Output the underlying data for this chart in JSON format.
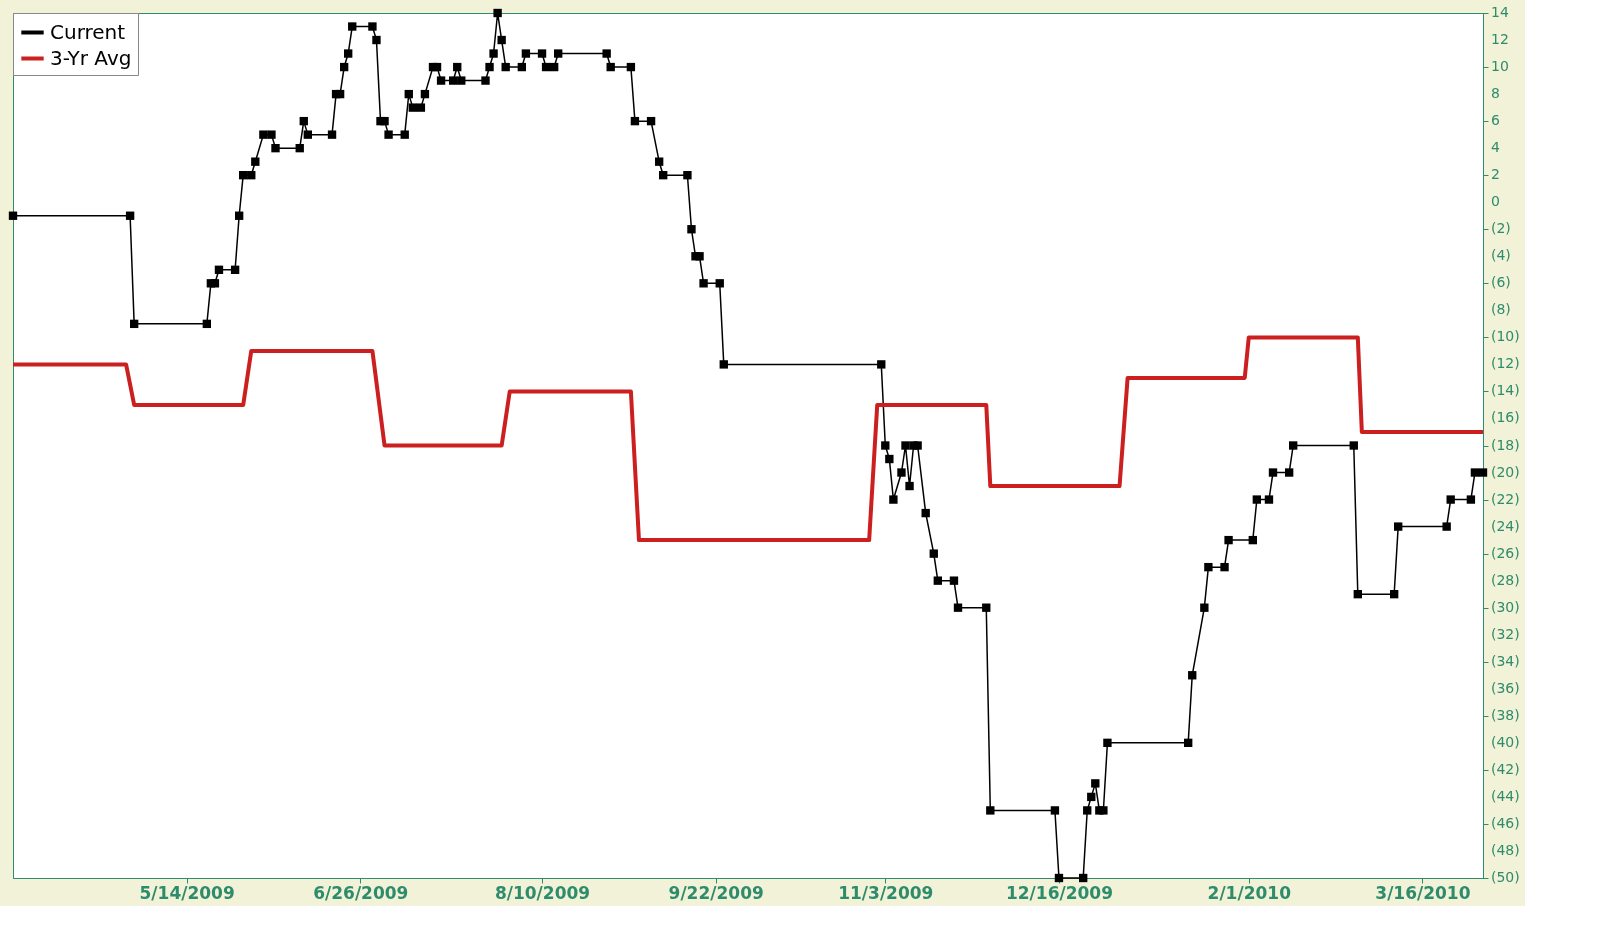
{
  "chart_data": {
    "type": "line",
    "xlim": [
      "2009-04-01",
      "2010-03-31"
    ],
    "xticks": [
      {
        "value": "2009-05-14",
        "label": "5/14/2009"
      },
      {
        "value": "2009-06-26",
        "label": "6/26/2009"
      },
      {
        "value": "2009-08-10",
        "label": "8/10/2009"
      },
      {
        "value": "2009-09-22",
        "label": "9/22/2009"
      },
      {
        "value": "2009-11-03",
        "label": "11/3/2009"
      },
      {
        "value": "2009-12-16",
        "label": "12/16/2009"
      },
      {
        "value": "2010-02-01",
        "label": "2/1/2010"
      },
      {
        "value": "2010-03-16",
        "label": "3/16/2010"
      }
    ],
    "ylim": [
      -50,
      14
    ],
    "yticks": [
      {
        "value": -50,
        "label": "(50)"
      },
      {
        "value": -48,
        "label": "(48)"
      },
      {
        "value": -46,
        "label": "(46)"
      },
      {
        "value": -44,
        "label": "(44)"
      },
      {
        "value": -42,
        "label": "(42)"
      },
      {
        "value": -40,
        "label": "(40)"
      },
      {
        "value": -38,
        "label": "(38)"
      },
      {
        "value": -36,
        "label": "(36)"
      },
      {
        "value": -34,
        "label": "(34)"
      },
      {
        "value": -32,
        "label": "(32)"
      },
      {
        "value": -30,
        "label": "(30)"
      },
      {
        "value": -28,
        "label": "(28)"
      },
      {
        "value": -26,
        "label": "(26)"
      },
      {
        "value": -24,
        "label": "(24)"
      },
      {
        "value": -22,
        "label": "(22)"
      },
      {
        "value": -20,
        "label": "(20)"
      },
      {
        "value": -18,
        "label": "(18)"
      },
      {
        "value": -16,
        "label": "(16)"
      },
      {
        "value": -14,
        "label": "(14)"
      },
      {
        "value": -12,
        "label": "(12)"
      },
      {
        "value": -10,
        "label": "(10)"
      },
      {
        "value": -8,
        "label": "(8)"
      },
      {
        "value": -6,
        "label": "(6)"
      },
      {
        "value": -4,
        "label": "(4)"
      },
      {
        "value": -2,
        "label": "(2)"
      },
      0,
      2,
      4,
      6,
      8,
      10,
      12,
      14
    ],
    "grid": false,
    "legend": "top left",
    "series": [
      {
        "name": "Current",
        "color": "#000000",
        "type": "line",
        "marker": "square",
        "x": [
          "2009-04-01",
          "2009-04-30",
          "2009-05-01",
          "2009-05-19",
          "2009-05-20",
          "2009-05-21",
          "2009-05-22",
          "2009-05-26",
          "2009-05-27",
          "2009-05-28",
          "2009-05-30",
          "2009-05-31",
          "2009-06-02",
          "2009-06-04",
          "2009-06-05",
          "2009-06-11",
          "2009-06-12",
          "2009-06-13",
          "2009-06-19",
          "2009-06-20",
          "2009-06-21",
          "2009-06-22",
          "2009-06-23",
          "2009-06-24",
          "2009-06-29",
          "2009-06-30",
          "2009-07-01",
          "2009-07-02",
          "2009-07-03",
          "2009-07-07",
          "2009-07-08",
          "2009-07-09",
          "2009-07-11",
          "2009-07-12",
          "2009-07-14",
          "2009-07-15",
          "2009-07-16",
          "2009-07-19",
          "2009-07-20",
          "2009-07-21",
          "2009-07-27",
          "2009-07-28",
          "2009-07-29",
          "2009-07-30",
          "2009-07-31",
          "2009-08-01",
          "2009-08-05",
          "2009-08-06",
          "2009-08-10",
          "2009-08-11",
          "2009-08-13",
          "2009-08-14",
          "2009-08-26",
          "2009-08-27",
          "2009-09-01",
          "2009-09-02",
          "2009-09-06",
          "2009-09-08",
          "2009-09-09",
          "2009-09-15",
          "2009-09-16",
          "2009-09-17",
          "2009-09-18",
          "2009-09-19",
          "2009-09-23",
          "2009-09-24",
          "2009-11-02",
          "2009-11-03",
          "2009-11-04",
          "2009-11-05",
          "2009-11-07",
          "2009-11-08",
          "2009-11-09",
          "2009-11-10",
          "2009-11-11",
          "2009-11-13",
          "2009-11-15",
          "2009-11-16",
          "2009-11-20",
          "2009-11-21",
          "2009-11-28",
          "2009-11-29",
          "2009-12-15",
          "2009-12-16",
          "2009-12-22",
          "2009-12-23",
          "2009-12-24",
          "2009-12-25",
          "2009-12-26",
          "2009-12-27",
          "2009-12-28",
          "2010-01-17",
          "2010-01-18",
          "2010-01-21",
          "2010-01-22",
          "2010-01-26",
          "2010-01-27",
          "2010-02-02",
          "2010-02-03",
          "2010-02-06",
          "2010-02-07",
          "2010-02-11",
          "2010-02-12",
          "2010-02-27",
          "2010-02-28",
          "2010-03-09",
          "2010-03-10",
          "2010-03-22",
          "2010-03-23",
          "2010-03-28",
          "2010-03-29",
          "2010-03-31"
        ],
        "values": [
          -1,
          -1,
          -9,
          -9,
          -6,
          -6,
          -5,
          -5,
          -1,
          2,
          2,
          3,
          5,
          5,
          4,
          4,
          6,
          5,
          5,
          8,
          8,
          10,
          11,
          13,
          13,
          12,
          6,
          6,
          5,
          5,
          8,
          7,
          7,
          8,
          10,
          10,
          9,
          9,
          10,
          9,
          9,
          10,
          11,
          14,
          12,
          10,
          10,
          11,
          11,
          10,
          10,
          11,
          11,
          10,
          10,
          6,
          6,
          3,
          2,
          2,
          -2,
          -4,
          -4,
          -6,
          -6,
          -12,
          -12,
          -18,
          -19,
          -22,
          -20,
          -18,
          -21,
          -18,
          -18,
          -23,
          -26,
          -28,
          -28,
          -30,
          -30,
          -45,
          -45,
          -50,
          -50,
          -45,
          -44,
          -43,
          -45,
          -45,
          -40,
          -40,
          -35,
          -30,
          -27,
          -27,
          -25,
          -25,
          -22,
          -22,
          -20,
          -20,
          -18,
          -18,
          -29,
          -29,
          -24,
          -24,
          -22,
          -22,
          -20,
          -20
        ]
      },
      {
        "name": "3-Yr Avg",
        "color": "#cc1f1f",
        "type": "line",
        "x": [
          "2009-04-01",
          "2009-04-29",
          "2009-05-01",
          "2009-05-28",
          "2009-05-30",
          "2009-06-29",
          "2009-07-02",
          "2009-07-31",
          "2009-08-02",
          "2009-09-01",
          "2009-09-03",
          "2009-10-30",
          "2009-11-01",
          "2009-11-28",
          "2009-11-29",
          "2009-12-31",
          "2010-01-02",
          "2010-01-31",
          "2010-02-01",
          "2010-02-28",
          "2010-03-01",
          "2010-03-31"
        ],
        "values": [
          -12,
          -12,
          -15,
          -15,
          -11,
          -11,
          -18,
          -18,
          -14,
          -14,
          -25,
          -25,
          -15,
          -15,
          -21,
          -21,
          -13,
          -13,
          -10,
          -10,
          -17,
          -17
        ]
      }
    ]
  }
}
